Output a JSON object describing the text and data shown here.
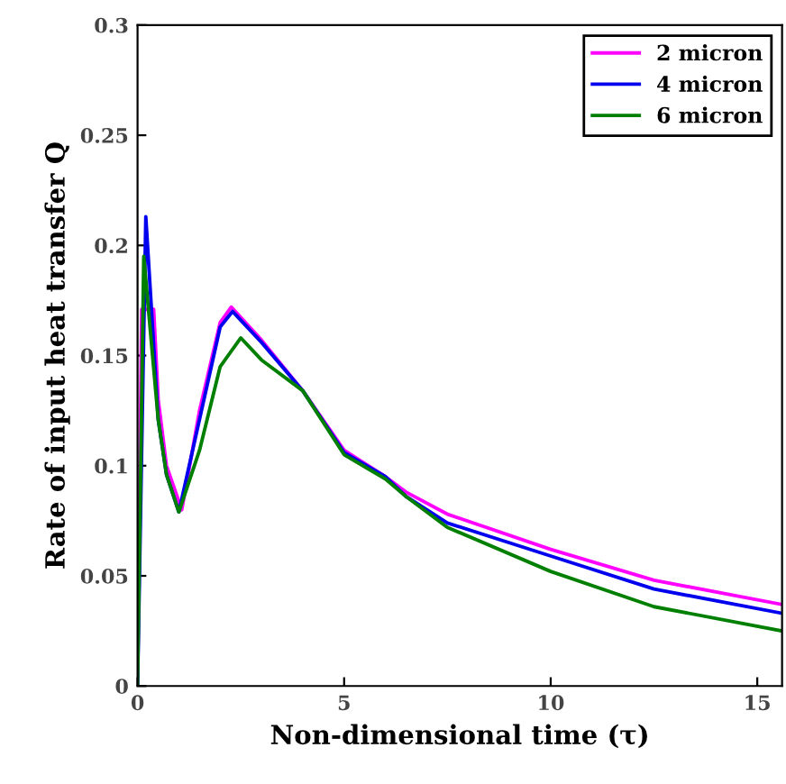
{
  "chart_data": {
    "type": "line",
    "xlabel": "Non-dimensional time (τ)",
    "ylabel": "Rate of input heat transfer Q",
    "xlim": [
      0,
      15.6
    ],
    "ylim": [
      0,
      0.3
    ],
    "xticks": [
      0,
      5,
      10,
      15
    ],
    "yticks": [
      0,
      0.05,
      0.1,
      0.15,
      0.2,
      0.25,
      0.3
    ],
    "grid": false,
    "legend": "top right",
    "marker": "none",
    "line_style": "solid",
    "series": [
      {
        "name": "2 micron",
        "color": "#ff00ff",
        "x": [
          0,
          0.1,
          0.17,
          0.39,
          0.5,
          0.7,
          1.07,
          1.5,
          2.0,
          2.27,
          3,
          4,
          5,
          6,
          6.5,
          7.5,
          10,
          12.5,
          15.6
        ],
        "values": [
          0,
          0.171,
          0.171,
          0.171,
          0.13,
          0.1,
          0.08,
          0.125,
          0.165,
          0.172,
          0.157,
          0.134,
          0.107,
          0.095,
          0.088,
          0.078,
          0.062,
          0.048,
          0.037
        ]
      },
      {
        "name": "4 micron",
        "color": "#0000ee",
        "x": [
          0,
          0.2,
          0.5,
          0.7,
          1.0,
          1.5,
          2.0,
          2.3,
          3,
          4,
          5,
          6,
          6.5,
          7.5,
          10,
          12.5,
          15.6
        ],
        "values": [
          0,
          0.213,
          0.121,
          0.096,
          0.079,
          0.121,
          0.163,
          0.17,
          0.156,
          0.134,
          0.106,
          0.095,
          0.086,
          0.074,
          0.059,
          0.044,
          0.033
        ]
      },
      {
        "name": "6 micron",
        "color": "#007f00",
        "x": [
          0,
          0.15,
          0.5,
          0.7,
          1.0,
          1.5,
          2.0,
          2.5,
          3,
          4,
          5,
          6,
          6.5,
          7.5,
          10,
          12.5,
          15.6
        ],
        "values": [
          0,
          0.195,
          0.121,
          0.096,
          0.079,
          0.107,
          0.145,
          0.158,
          0.148,
          0.134,
          0.105,
          0.094,
          0.086,
          0.072,
          0.052,
          0.036,
          0.025
        ]
      }
    ]
  }
}
